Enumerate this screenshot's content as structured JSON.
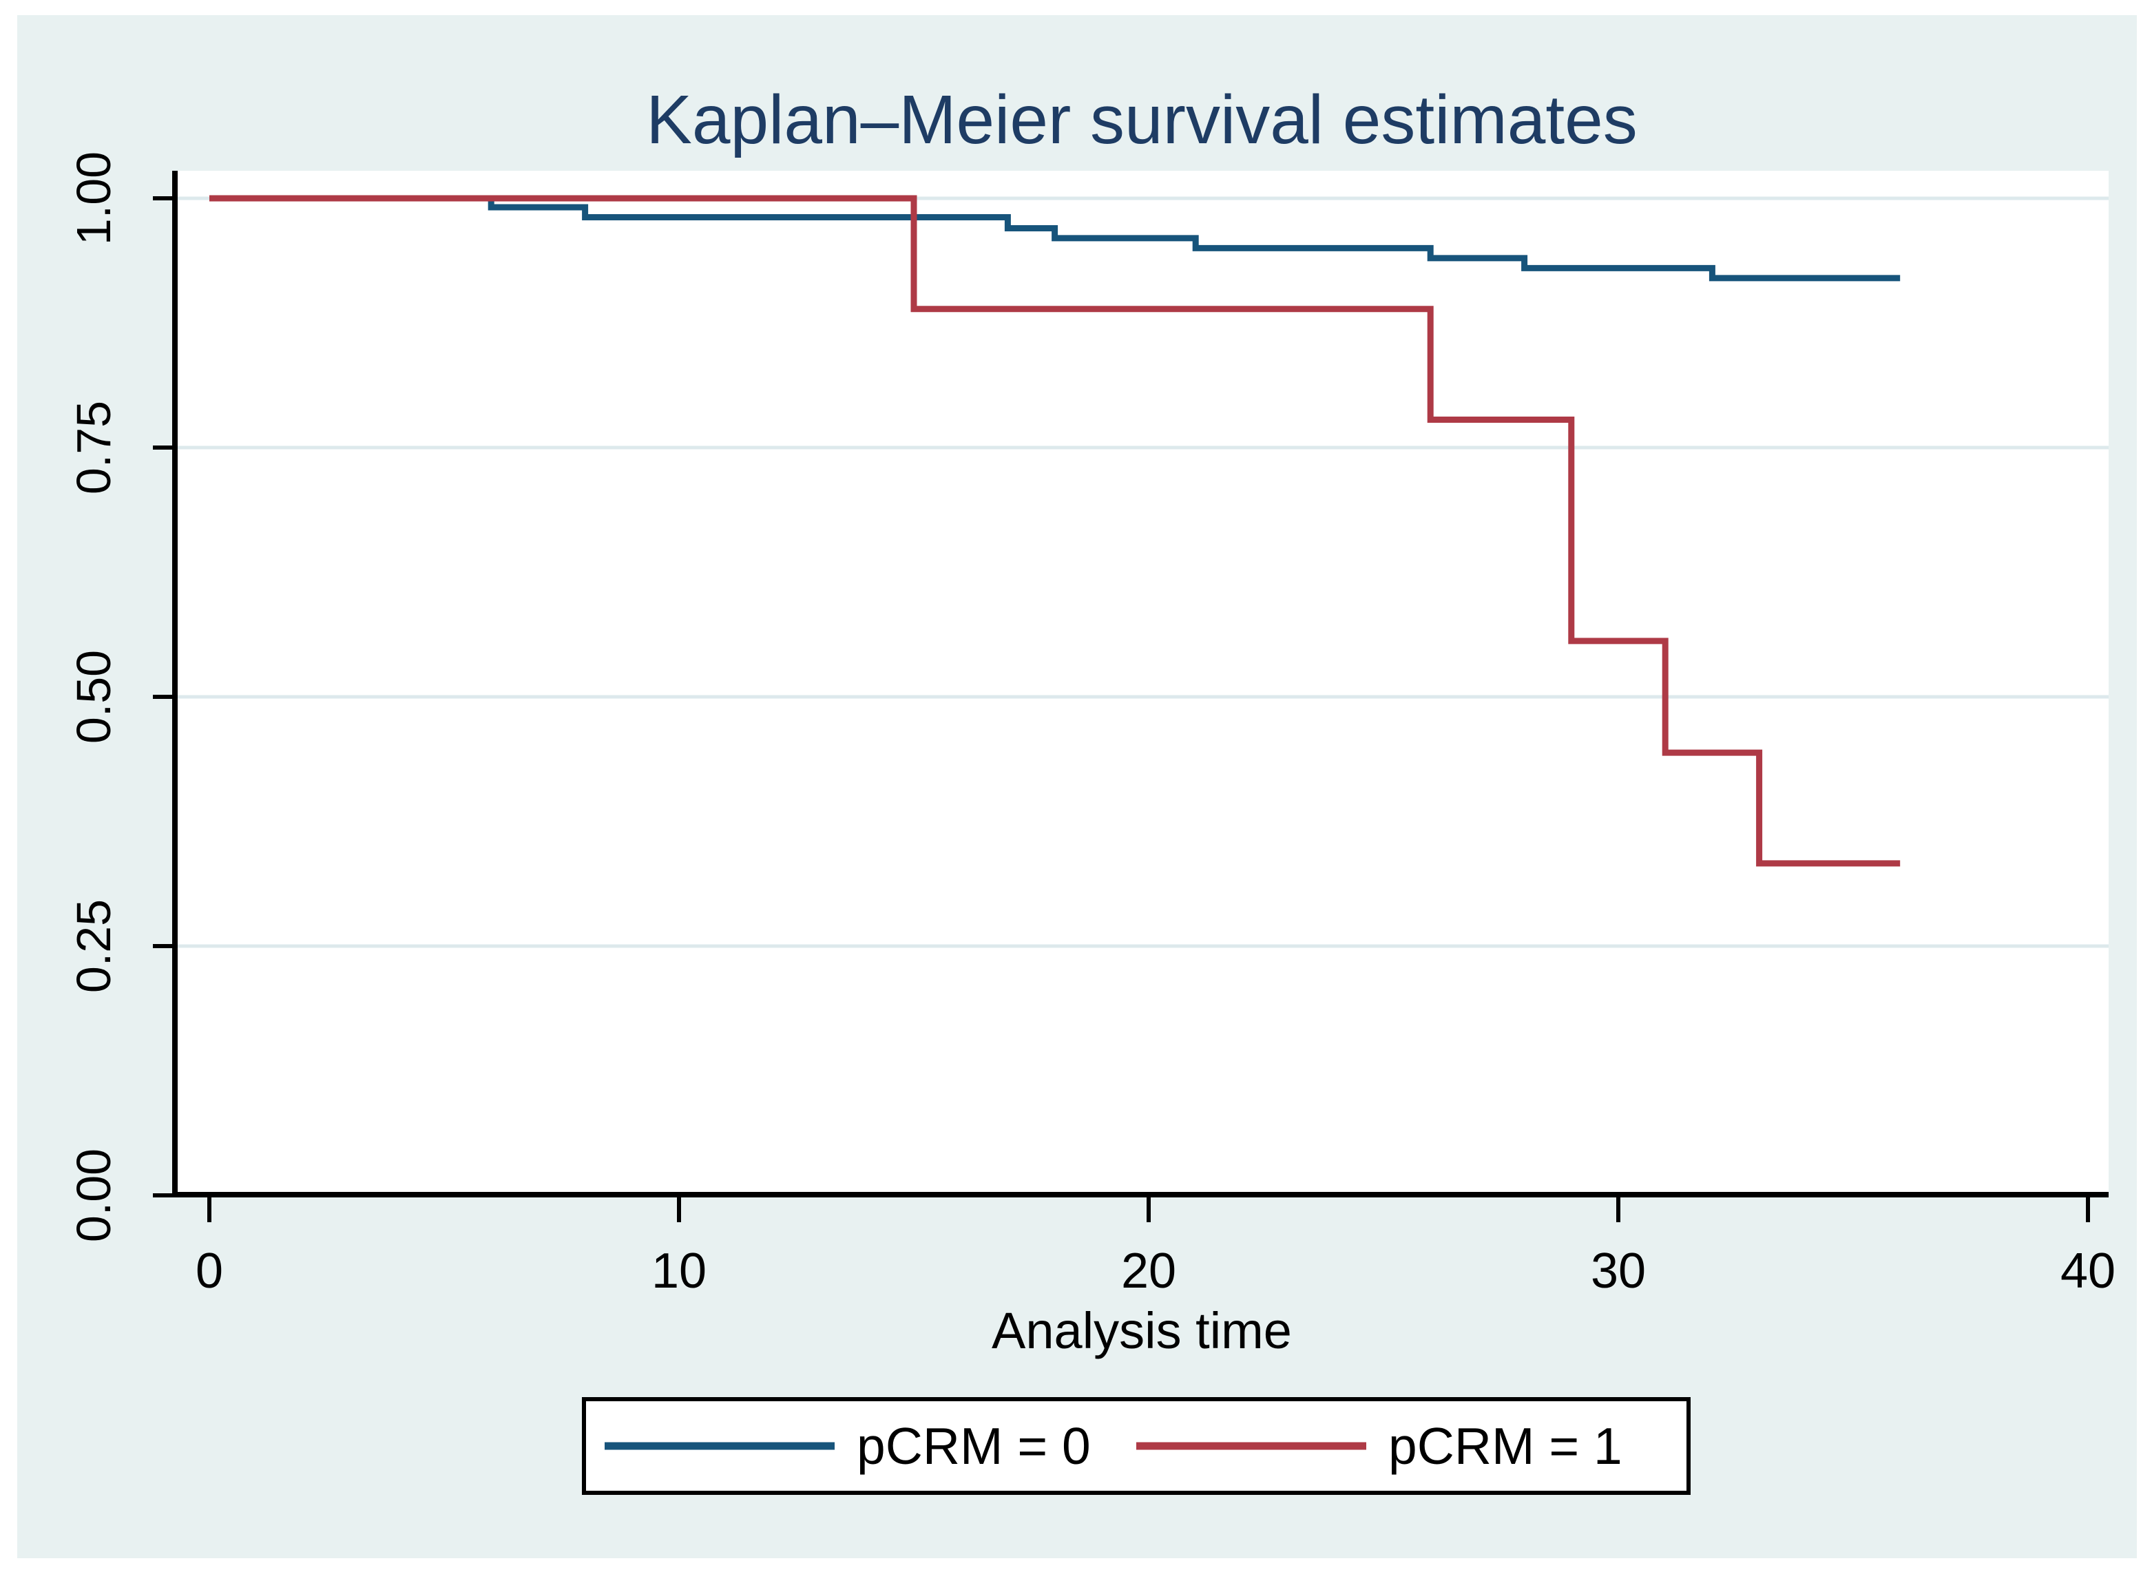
{
  "figure": {
    "title": "Kaplan–Meier survival estimates",
    "title_color": "#1e3c64",
    "background_color": "#e8f1f1",
    "plot_background_color": "#ffffff",
    "gridline_color": "#dde9ec",
    "axis_color": "#000000",
    "tick_label_color": "#000000"
  },
  "legend": {
    "entries": [
      {
        "label": "pCRM = 0",
        "color": "#17547b"
      },
      {
        "label": "pCRM = 1",
        "color": "#ae3a46"
      }
    ]
  },
  "chart_data": {
    "type": "line",
    "subtype": "kaplan-meier-step",
    "title": "Kaplan–Meier survival estimates",
    "xlabel": "Analysis time",
    "ylabel": "",
    "xlim": [
      0,
      40
    ],
    "ylim": [
      0.0,
      1.0
    ],
    "x_ticks": [
      0,
      10,
      20,
      30,
      40
    ],
    "x_tick_labels": [
      "0",
      "10",
      "20",
      "30",
      "40"
    ],
    "y_ticks": [
      0.0,
      0.25,
      0.5,
      0.75,
      1.0
    ],
    "y_tick_labels": [
      "0.00",
      "0.25",
      "0.50",
      "0.75",
      "1.00"
    ],
    "grid": "horizontal",
    "legend_position": "bottom",
    "series": [
      {
        "name": "pCRM = 0",
        "color": "#17547b",
        "steps": [
          [
            0,
            1.0
          ],
          [
            6,
            0.991
          ],
          [
            8,
            0.981
          ],
          [
            17,
            0.97
          ],
          [
            18,
            0.96
          ],
          [
            21,
            0.95
          ],
          [
            26,
            0.94
          ],
          [
            28,
            0.93
          ],
          [
            32,
            0.92
          ]
        ],
        "end_x": 36
      },
      {
        "name": "pCRM = 1",
        "color": "#ae3a46",
        "steps": [
          [
            0,
            1.0
          ],
          [
            15,
            0.889
          ],
          [
            26,
            0.778
          ],
          [
            29,
            0.556
          ],
          [
            31,
            0.444
          ],
          [
            33,
            0.333
          ]
        ],
        "end_x": 36
      }
    ]
  }
}
